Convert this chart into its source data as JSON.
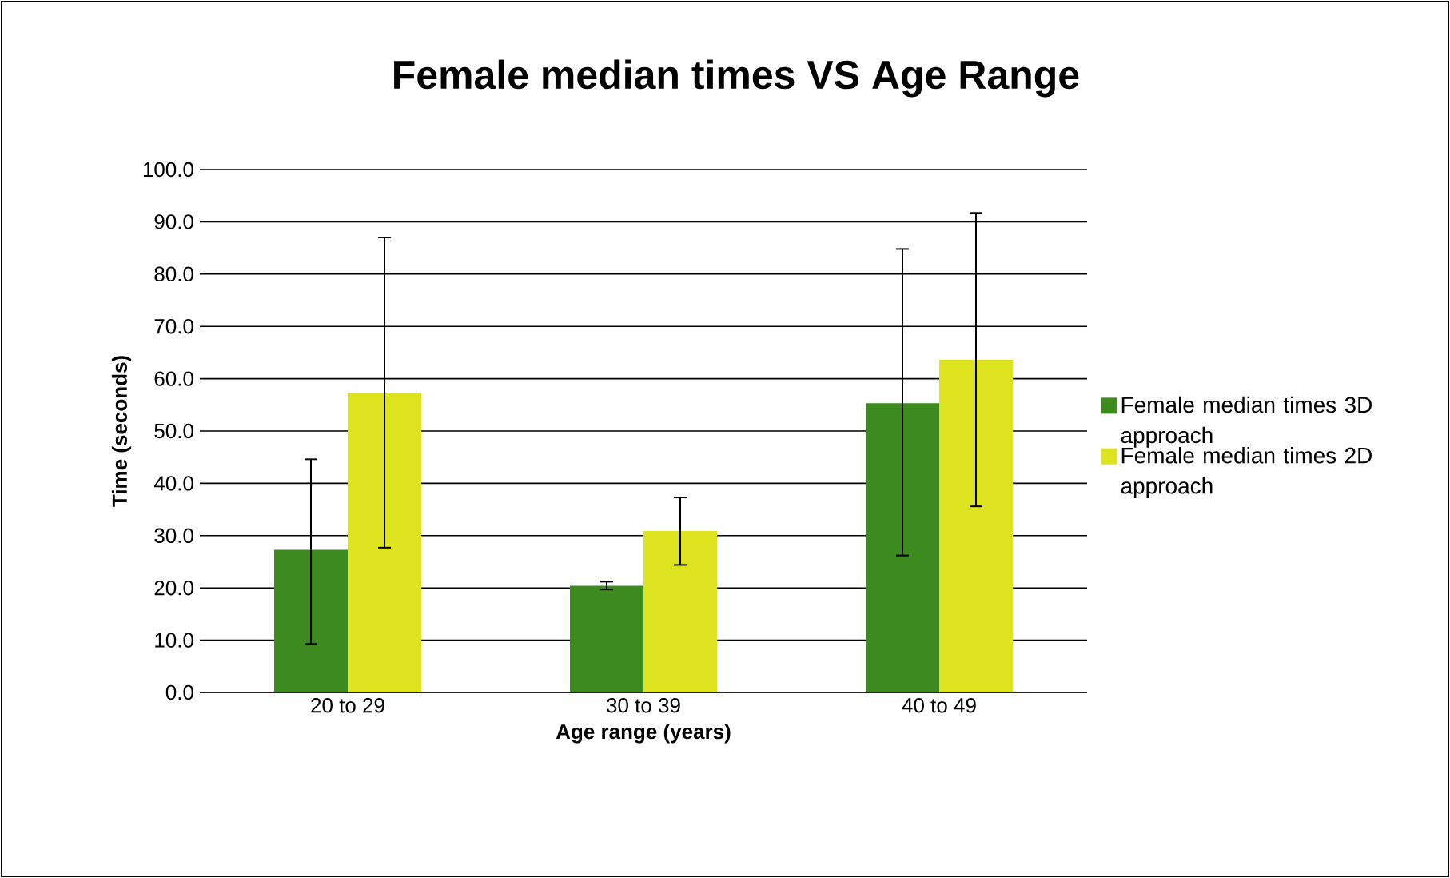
{
  "chart_data": {
    "type": "bar",
    "title": "Female median times VS Age Range",
    "xlabel": "Age range (years)",
    "ylabel": "Time  (seconds)",
    "categories": [
      "20 to 29",
      "30 to 39",
      "40 to 49"
    ],
    "series": [
      {
        "name": "Female median times 3D approach",
        "color": "#3d8b1f",
        "values": [
          27.3,
          20.4,
          55.3
        ],
        "errors": [
          [
            9.3,
            44.6
          ],
          [
            19.7,
            21.2
          ],
          [
            26.2,
            84.8
          ]
        ]
      },
      {
        "name": "Female median times 2D approach",
        "color": "#dde31f",
        "values": [
          57.3,
          30.9,
          63.6
        ],
        "errors": [
          [
            27.7,
            87.0
          ],
          [
            24.4,
            37.3
          ],
          [
            35.6,
            91.7
          ]
        ]
      }
    ],
    "ylim": [
      0,
      100
    ],
    "yticks": [
      {
        "value": 0,
        "label": "0.0"
      },
      {
        "value": 10,
        "label": "10.0"
      },
      {
        "value": 20,
        "label": "20.0"
      },
      {
        "value": 30,
        "label": "30.0"
      },
      {
        "value": 40,
        "label": "40.0"
      },
      {
        "value": 50,
        "label": "50.0"
      },
      {
        "value": 60,
        "label": "60.0"
      },
      {
        "value": 70,
        "label": "70.0"
      },
      {
        "value": 80,
        "label": "80.0"
      },
      {
        "value": 90,
        "label": "90.0"
      },
      {
        "value": 100,
        "label": "100.0"
      }
    ],
    "grid": "y",
    "legend": "right"
  }
}
